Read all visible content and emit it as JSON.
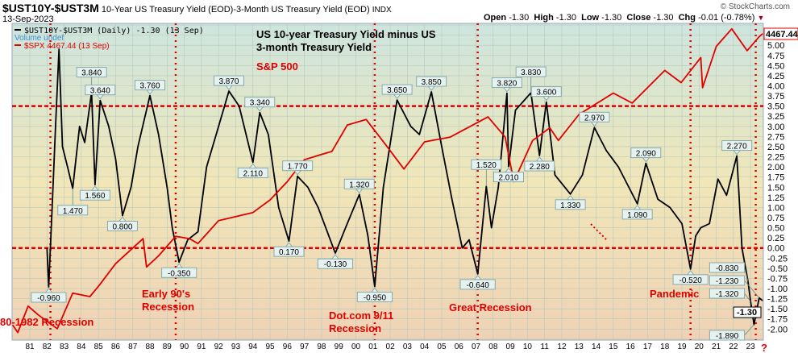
{
  "header": {
    "symbol": "$UST10Y-$UST3M",
    "description": "10-Year US Treasury Yield (EOD)-3-Month US Treasury Yield (EOD)",
    "exchange": "INDX",
    "date": "13-Sep-2023",
    "watermark": "© StockCharts.com",
    "open_label": "Open",
    "open": "-1.30",
    "high_label": "High",
    "high": "-1.30",
    "low_label": "Low",
    "low": "-1.30",
    "close_label": "Close",
    "close": "-1.30",
    "chg_label": "Chg",
    "chg": "-0.01 (-0.78%)"
  },
  "legend": {
    "spread": "$UST10Y-$UST3M (Daily) -1.30 (13 Sep)",
    "volume": "Volume undef",
    "spx": "$SPX 4467.44 (13 Sep)"
  },
  "colors": {
    "spread": "#000000",
    "spx": "#e00000",
    "annotation": "#e00000",
    "volume": "#3a8fd0"
  },
  "chart_data": {
    "type": "line",
    "title": "US 10-year Treasury Yield minus US 3-month Treasury Yield",
    "title_lines": [
      "US 10-year Treasury Yield minus US",
      "3-month Treasury Yield"
    ],
    "spx_title": "S&P 500",
    "ylim": [
      -2.25,
      5.5
    ],
    "xlim": [
      1980,
      2023.7
    ],
    "y_ticks": [
      "5.00",
      "4.75",
      "4.50",
      "4.25",
      "4.00",
      "3.75",
      "3.50",
      "3.25",
      "3.00",
      "2.75",
      "2.50",
      "2.25",
      "2.00",
      "1.75",
      "1.50",
      "1.25",
      "1.00",
      "0.75",
      "0.50",
      "0.25",
      "0.00",
      "-0.25",
      "-0.50",
      "-0.75",
      "-1.00",
      "-1.25",
      "-1.50",
      "-1.75",
      "-2.00"
    ],
    "x_ticks": [
      "81",
      "82",
      "83",
      "84",
      "85",
      "86",
      "87",
      "88",
      "89",
      "90",
      "91",
      "92",
      "93",
      "94",
      "95",
      "96",
      "97",
      "98",
      "99",
      "00",
      "01",
      "02",
      "03",
      "04",
      "05",
      "06",
      "07",
      "08",
      "09",
      "10",
      "11",
      "12",
      "13",
      "14",
      "15",
      "16",
      "17",
      "18",
      "19",
      "20",
      "21",
      "22",
      "23"
    ],
    "grid": true,
    "reference_lines": [
      3.5,
      0.0
    ],
    "recession_lines": [
      1982.2,
      1989.5,
      2001.1,
      2007.1,
      2019.5,
      2023.3
    ],
    "series": [
      {
        "name": "$UST10Y-$UST3M",
        "x": [
          1982.0,
          1982.1,
          1982.3,
          1982.5,
          1982.7,
          1982.9,
          1983.2,
          1983.5,
          1983.9,
          1984.2,
          1984.6,
          1984.8,
          1985.1,
          1985.6,
          1986.0,
          1986.4,
          1986.9,
          1987.3,
          1988.0,
          1988.5,
          1989.0,
          1989.3,
          1989.7,
          1990.2,
          1990.8,
          1991.3,
          1992.0,
          1992.6,
          1993.2,
          1994.0,
          1994.4,
          1994.9,
          1995.5,
          1996.1,
          1996.6,
          1997.2,
          1997.8,
          1998.8,
          1999.4,
          2000.2,
          2000.7,
          2001.1,
          2001.6,
          2002.4,
          2003.2,
          2003.7,
          2004.4,
          2005.0,
          2005.6,
          2006.2,
          2006.6,
          2007.1,
          2007.6,
          2007.9,
          2008.3,
          2008.8,
          2008.9,
          2009.3,
          2010.2,
          2010.7,
          2011.1,
          2011.6,
          2012.5,
          2013.2,
          2013.9,
          2014.6,
          2015.3,
          2016.4,
          2016.9,
          2017.6,
          2018.3,
          2019.0,
          2019.5,
          2019.8,
          2020.1,
          2020.6,
          2021.1,
          2021.6,
          2022.2,
          2022.5,
          2022.85,
          2023.0,
          2023.2,
          2023.5,
          2023.7
        ],
        "values": [
          0.0,
          -0.96,
          1.0,
          3.0,
          4.9,
          2.5,
          2.0,
          1.47,
          3.0,
          2.6,
          3.84,
          1.56,
          3.64,
          3.0,
          2.2,
          0.8,
          1.5,
          2.5,
          3.76,
          2.8,
          1.5,
          0.5,
          -0.35,
          0.2,
          0.4,
          2.0,
          3.0,
          3.87,
          3.5,
          2.11,
          3.34,
          2.8,
          1.0,
          0.17,
          1.77,
          1.5,
          1.0,
          -0.13,
          0.5,
          1.32,
          0.3,
          -0.95,
          1.5,
          3.65,
          3.0,
          2.8,
          3.85,
          2.5,
          1.2,
          0.0,
          0.2,
          -0.64,
          1.52,
          0.5,
          1.5,
          3.82,
          2.01,
          3.4,
          3.83,
          2.28,
          3.6,
          1.8,
          1.33,
          1.8,
          2.97,
          2.4,
          2.0,
          1.09,
          2.09,
          1.2,
          1.0,
          0.6,
          -0.52,
          0.3,
          0.5,
          0.6,
          1.7,
          1.3,
          2.27,
          0.0,
          -0.83,
          -1.32,
          -1.89,
          -1.23,
          -1.3
        ]
      },
      {
        "name": "$SPX",
        "x": [
          1980.0,
          1980.3,
          1980.9,
          1981.5,
          1982.6,
          1983.5,
          1984.5,
          1985.0,
          1986.0,
          1987.6,
          1987.8,
          1988.5,
          1989.5,
          1990.3,
          1990.8,
          1992.0,
          1994.0,
          1995.0,
          1996.0,
          1997.0,
          1997.8,
          1998.6,
          1999.5,
          2000.6,
          2001.7,
          2002.8,
          2004.0,
          2005.5,
          2007.7,
          2008.7,
          2009.2,
          2010.3,
          2011.3,
          2011.8,
          2013.0,
          2015.0,
          2016.1,
          2018.0,
          2018.95,
          2020.1,
          2020.2,
          2021.0,
          2021.9,
          2022.8,
          2023.5,
          2023.7
        ],
        "values": [
          110,
          100,
          140,
          125,
          105,
          165,
          158,
          180,
          240,
          330,
          230,
          265,
          340,
          330,
          310,
          415,
          460,
          540,
          680,
          900,
          950,
          1000,
          1400,
          1500,
          1100,
          800,
          1130,
          1200,
          1550,
          1200,
          680,
          1150,
          1350,
          1150,
          1600,
          2100,
          1850,
          2800,
          2400,
          3300,
          2250,
          3800,
          4750,
          3600,
          4300,
          4467
        ]
      }
    ],
    "labels": [
      {
        "x": 1982.1,
        "value": "-0.960",
        "dir": "down"
      },
      {
        "x": 1983.5,
        "value": "1.470",
        "dir": "down"
      },
      {
        "x": 1984.6,
        "value": "3.840",
        "dir": "up"
      },
      {
        "x": 1984.8,
        "value": "1.560",
        "dir": "down"
      },
      {
        "x": 1985.1,
        "value": "3.640",
        "dir": "up"
      },
      {
        "x": 1986.4,
        "value": "0.800",
        "dir": "down"
      },
      {
        "x": 1988.0,
        "value": "3.760",
        "dir": "up"
      },
      {
        "x": 1989.7,
        "value": "-0.350",
        "dir": "down"
      },
      {
        "x": 1992.6,
        "value": "3.870",
        "dir": "up"
      },
      {
        "x": 1994.0,
        "value": "2.110",
        "dir": "down"
      },
      {
        "x": 1994.4,
        "value": "3.340",
        "dir": "up"
      },
      {
        "x": 1996.1,
        "value": "0.170",
        "dir": "down"
      },
      {
        "x": 1996.6,
        "value": "1.770",
        "dir": "up"
      },
      {
        "x": 1998.8,
        "value": "-0.130",
        "dir": "down"
      },
      {
        "x": 2000.2,
        "value": "1.320",
        "dir": "up"
      },
      {
        "x": 2001.1,
        "value": "-0.950",
        "dir": "down"
      },
      {
        "x": 2002.4,
        "value": "3.650",
        "dir": "up"
      },
      {
        "x": 2004.4,
        "value": "3.850",
        "dir": "up"
      },
      {
        "x": 2007.1,
        "value": "-0.640",
        "dir": "down"
      },
      {
        "x": 2007.6,
        "value": "1.520",
        "dir": "up"
      },
      {
        "x": 2008.8,
        "value": "3.820",
        "dir": "up"
      },
      {
        "x": 2008.9,
        "value": "2.010",
        "dir": "down"
      },
      {
        "x": 2010.2,
        "value": "3.830",
        "dir": "up"
      },
      {
        "x": 2010.7,
        "value": "2.280",
        "dir": "down"
      },
      {
        "x": 2011.1,
        "value": "3.600",
        "dir": "up"
      },
      {
        "x": 2012.5,
        "value": "1.330",
        "dir": "down"
      },
      {
        "x": 2013.9,
        "value": "2.970",
        "dir": "up"
      },
      {
        "x": 2016.4,
        "value": "1.090",
        "dir": "down"
      },
      {
        "x": 2016.9,
        "value": "2.090",
        "dir": "up"
      },
      {
        "x": 2019.5,
        "value": "-0.520",
        "dir": "down"
      },
      {
        "x": 2022.2,
        "value": "2.270",
        "dir": "up"
      },
      {
        "x": 2022.85,
        "value": "-0.830",
        "dir": "up"
      },
      {
        "x": 2023.5,
        "value": "-1.230",
        "dir": "up"
      },
      {
        "x": 2023.0,
        "value": "-1.320",
        "dir": "up"
      },
      {
        "x": 2023.2,
        "value": "-1.890",
        "dir": "down"
      }
    ],
    "last_values": {
      "spx": "4467.44",
      "spread": "-1.30"
    },
    "annotations": [
      {
        "text": "80-1982 Recession",
        "lines": [
          "80-1982 Recession"
        ]
      },
      {
        "text": "Early 90's Recession",
        "lines": [
          "Early 90's",
          "Recession"
        ]
      },
      {
        "text": "Dot.com 9/11 Recession",
        "lines": [
          "Dot.com 9/11",
          "Recession"
        ]
      },
      {
        "text": "Great Recession",
        "lines": [
          "Great Recession"
        ]
      },
      {
        "text": "Pandemic",
        "lines": [
          "Pandemic"
        ]
      },
      {
        "text": "?",
        "lines": [
          "?"
        ]
      }
    ]
  }
}
